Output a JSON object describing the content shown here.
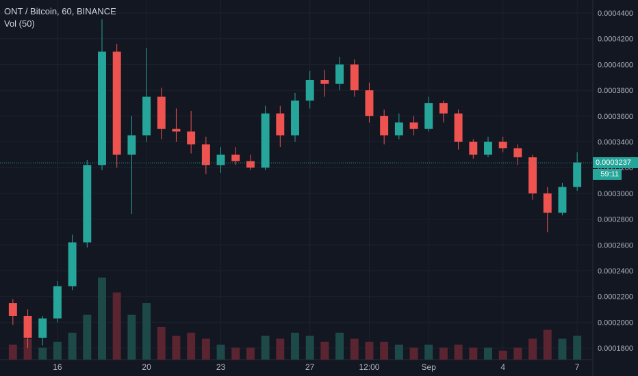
{
  "header": {
    "symbol_line": "ONT / Bitcoin, 60, BINANCE",
    "volume_indicator": "Vol (50)"
  },
  "price_axis": {
    "current_price": "0.0003237",
    "countdown": "59:11"
  },
  "colors": {
    "background": "#131722",
    "grid": "#1e2230",
    "up": "#26a69a",
    "down": "#ef5350",
    "up_volume": "#1d4a48",
    "down_volume": "#5a2531",
    "axis_text": "#b2b5be",
    "current_price_line": "#26a69a"
  },
  "chart_data": {
    "type": "candlestick",
    "title": "ONT / Bitcoin, 60, BINANCE",
    "interval": "60",
    "exchange": "BINANCE",
    "ylim": [
      0.00016,
      0.00044
    ],
    "y_ticks": [
      "0.0004400",
      "0.0004200",
      "0.0004000",
      "0.0003800",
      "0.0003600",
      "0.0003400",
      "0.0003200",
      "0.0003000",
      "0.0002800",
      "0.0002600",
      "0.0002400",
      "0.0002200",
      "0.0002000",
      "0.0001800"
    ],
    "y_tick_values": [
      0.00044,
      0.00042,
      0.0004,
      0.00038,
      0.00036,
      0.00034,
      0.00032,
      0.0003,
      0.00028,
      0.00026,
      0.00024,
      0.00022,
      0.0002,
      0.00018
    ],
    "x_ticks": [
      "16",
      "20",
      "23",
      "27",
      "12:00",
      "Sep",
      "4",
      "7"
    ],
    "x_tick_index": [
      3,
      9,
      14,
      20,
      24,
      28,
      33,
      38
    ],
    "last_price": 0.0003237,
    "candles": [
      [
        0.000215,
        0.000218,
        0.000198,
        0.000205,
        10
      ],
      [
        0.000205,
        0.00021,
        0.00018,
        0.000188,
        14
      ],
      [
        0.000188,
        0.000205,
        0.000182,
        0.000203,
        8
      ],
      [
        0.000203,
        0.000232,
        0.0002,
        0.000228,
        12
      ],
      [
        0.000228,
        0.000268,
        0.000225,
        0.000262,
        18
      ],
      [
        0.000262,
        0.000326,
        0.000258,
        0.000322,
        30
      ],
      [
        0.000322,
        0.000435,
        0.000318,
        0.00041,
        55
      ],
      [
        0.00041,
        0.000416,
        0.00032,
        0.00033,
        45
      ],
      [
        0.00033,
        0.00036,
        0.000284,
        0.000345,
        30
      ],
      [
        0.000345,
        0.000413,
        0.00034,
        0.000375,
        38
      ],
      [
        0.000375,
        0.000382,
        0.000342,
        0.00035,
        22
      ],
      [
        0.00035,
        0.000366,
        0.00034,
        0.000348,
        16
      ],
      [
        0.000348,
        0.000364,
        0.000331,
        0.000338,
        18
      ],
      [
        0.000338,
        0.000344,
        0.000315,
        0.000322,
        14
      ],
      [
        0.000322,
        0.000336,
        0.000316,
        0.00033,
        10
      ],
      [
        0.00033,
        0.000336,
        0.000322,
        0.000325,
        8
      ],
      [
        0.000325,
        0.00033,
        0.000318,
        0.00032,
        8
      ],
      [
        0.00032,
        0.000368,
        0.000318,
        0.000362,
        16
      ],
      [
        0.000362,
        0.000368,
        0.000336,
        0.000345,
        14
      ],
      [
        0.000345,
        0.000378,
        0.00034,
        0.000372,
        18
      ],
      [
        0.000372,
        0.000395,
        0.000366,
        0.000388,
        16
      ],
      [
        0.000388,
        0.000396,
        0.000375,
        0.000385,
        12
      ],
      [
        0.000385,
        0.000406,
        0.00038,
        0.0004,
        18
      ],
      [
        0.0004,
        0.000404,
        0.000375,
        0.00038,
        14
      ],
      [
        0.00038,
        0.000386,
        0.000355,
        0.00036,
        12
      ],
      [
        0.00036,
        0.000365,
        0.000338,
        0.000345,
        12
      ],
      [
        0.000345,
        0.000362,
        0.000342,
        0.000355,
        10
      ],
      [
        0.000355,
        0.00036,
        0.000345,
        0.00035,
        8
      ],
      [
        0.00035,
        0.000375,
        0.000348,
        0.00037,
        10
      ],
      [
        0.00037,
        0.000372,
        0.000355,
        0.000362,
        8
      ],
      [
        0.000362,
        0.000365,
        0.000334,
        0.00034,
        10
      ],
      [
        0.00034,
        0.000342,
        0.000327,
        0.00033,
        8
      ],
      [
        0.00033,
        0.000344,
        0.000328,
        0.00034,
        8
      ],
      [
        0.00034,
        0.000344,
        0.000332,
        0.000335,
        6
      ],
      [
        0.000335,
        0.000338,
        0.000322,
        0.000328,
        8
      ],
      [
        0.000328,
        0.00033,
        0.000295,
        0.0003,
        14
      ],
      [
        0.0003,
        0.000305,
        0.00027,
        0.000285,
        20
      ],
      [
        0.000285,
        0.000308,
        0.000283,
        0.000305,
        14
      ],
      [
        0.000305,
        0.000332,
        0.000302,
        0.000324,
        16
      ]
    ]
  }
}
